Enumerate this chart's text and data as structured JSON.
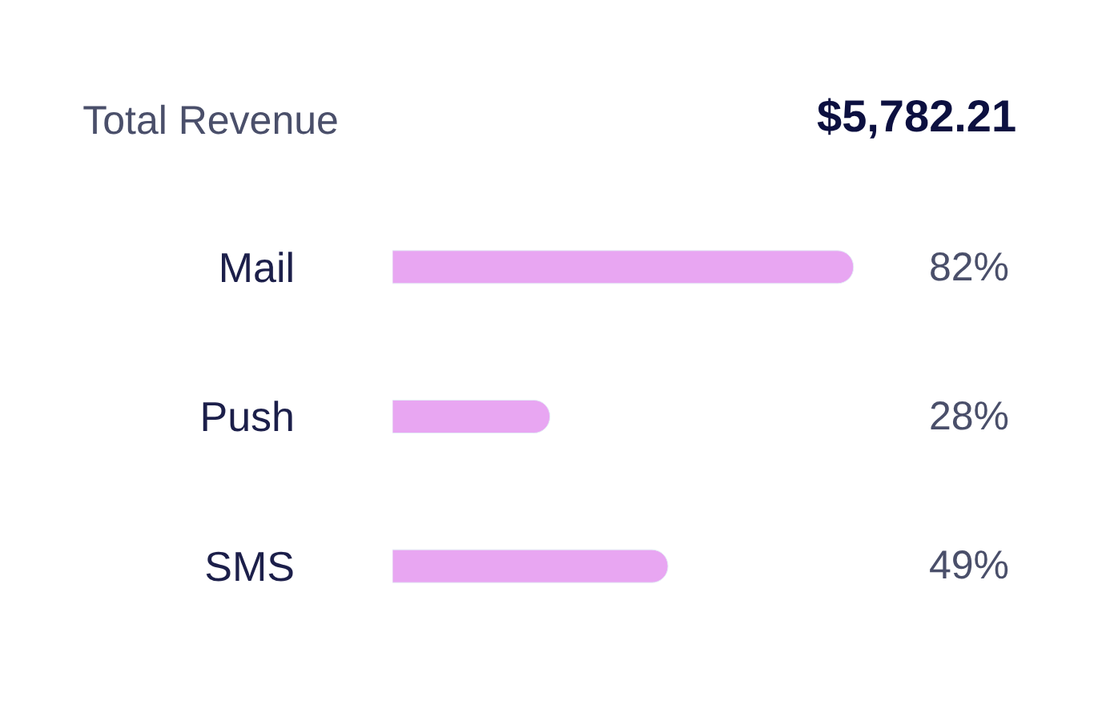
{
  "chart_data": {
    "type": "bar",
    "orientation": "horizontal",
    "title": "Total Revenue",
    "annotations": [
      "$5,782.21"
    ],
    "categories": [
      "Mail",
      "Push",
      "SMS"
    ],
    "values": [
      82,
      28,
      49
    ],
    "value_labels": [
      "82%",
      "28%",
      "49%"
    ],
    "color": "#e8a6f2",
    "tick_labels": "y",
    "legend": false
  }
}
